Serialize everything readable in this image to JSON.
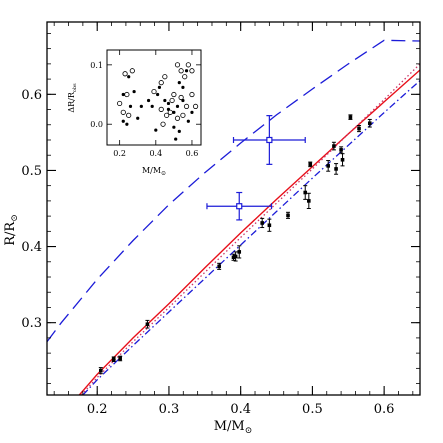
{
  "chart_data": [
    {
      "type": "line",
      "xlim": [
        0.13,
        0.65
      ],
      "ylim": [
        0.205,
        0.695
      ],
      "xlabel": "M/M",
      "ylabel": "R/R",
      "sun_symbol": "⊙",
      "xticks": [
        0.2,
        0.3,
        0.4,
        0.5,
        0.6
      ],
      "xtick_labels": [
        "0.2",
        "0.3",
        "0.4",
        "0.5",
        "0.6"
      ],
      "yticks": [
        0.3,
        0.4,
        0.5,
        0.6
      ],
      "ytick_labels": [
        "0.3",
        "0.4",
        "0.5",
        "0.6"
      ],
      "grid": false,
      "colors": {
        "red": "#e8101a",
        "blue": "#1c1cd8",
        "black": "#000000",
        "magenta": "#cc3366"
      },
      "series": [
        {
          "style": "solid",
          "color": "#e8101a",
          "x": [
            0.175,
            0.2,
            0.25,
            0.3,
            0.35,
            0.4,
            0.45,
            0.5,
            0.55,
            0.6,
            0.65
          ],
          "y": [
            0.205,
            0.232,
            0.28,
            0.325,
            0.372,
            0.418,
            0.462,
            0.505,
            0.548,
            0.59,
            0.632
          ]
        },
        {
          "style": "dotted",
          "color": "#cc3366",
          "x": [
            0.178,
            0.2,
            0.25,
            0.3,
            0.35,
            0.4,
            0.45,
            0.5,
            0.55,
            0.6,
            0.65
          ],
          "y": [
            0.205,
            0.228,
            0.275,
            0.32,
            0.366,
            0.412,
            0.457,
            0.502,
            0.548,
            0.593,
            0.64
          ]
        },
        {
          "style": "dashdot",
          "color": "#1c1cd8",
          "x": [
            0.18,
            0.2,
            0.25,
            0.3,
            0.35,
            0.4,
            0.45,
            0.5,
            0.55,
            0.6,
            0.65
          ],
          "y": [
            0.205,
            0.225,
            0.27,
            0.314,
            0.358,
            0.402,
            0.446,
            0.49,
            0.533,
            0.576,
            0.618
          ]
        },
        {
          "style": "dashed",
          "color": "#1c1cd8",
          "x": [
            0.13,
            0.15,
            0.2,
            0.25,
            0.3,
            0.35,
            0.4,
            0.45,
            0.5,
            0.55,
            0.6,
            0.65
          ],
          "y": [
            0.275,
            0.3,
            0.357,
            0.408,
            0.455,
            0.497,
            0.536,
            0.573,
            0.607,
            0.64,
            0.671,
            0.67
          ]
        }
      ],
      "points": [
        {
          "x": 0.205,
          "y": 0.237,
          "ey": 0.004
        },
        {
          "x": 0.223,
          "y": 0.252,
          "ey": 0.003
        },
        {
          "x": 0.232,
          "y": 0.253,
          "ey": 0.003
        },
        {
          "x": 0.27,
          "y": 0.298,
          "ey": 0.005
        },
        {
          "x": 0.37,
          "y": 0.374,
          "ey": 0.004
        },
        {
          "x": 0.39,
          "y": 0.386,
          "ey": 0.004
        },
        {
          "x": 0.393,
          "y": 0.387,
          "ey": 0.006
        },
        {
          "x": 0.398,
          "y": 0.393,
          "ey": 0.008
        },
        {
          "x": 0.43,
          "y": 0.431,
          "ey": 0.006
        },
        {
          "x": 0.44,
          "y": 0.428,
          "ey": 0.008
        },
        {
          "x": 0.466,
          "y": 0.441,
          "ey": 0.004
        },
        {
          "x": 0.49,
          "y": 0.471,
          "ey": 0.009
        },
        {
          "x": 0.495,
          "y": 0.46,
          "ey": 0.01
        },
        {
          "x": 0.497,
          "y": 0.508,
          "ey": 0.003
        },
        {
          "x": 0.522,
          "y": 0.506,
          "ey": 0.007
        },
        {
          "x": 0.53,
          "y": 0.532,
          "ey": 0.005
        },
        {
          "x": 0.533,
          "y": 0.502,
          "ey": 0.007
        },
        {
          "x": 0.54,
          "y": 0.527,
          "ey": 0.004
        },
        {
          "x": 0.542,
          "y": 0.514,
          "ey": 0.008
        },
        {
          "x": 0.553,
          "y": 0.57,
          "ey": 0.003
        },
        {
          "x": 0.565,
          "y": 0.555,
          "ey": 0.004
        },
        {
          "x": 0.58,
          "y": 0.562,
          "ey": 0.005
        }
      ],
      "open_points": [
        {
          "x": 0.398,
          "y": 0.453,
          "ex": 0.045,
          "ey": 0.018
        },
        {
          "x": 0.44,
          "y": 0.54,
          "ex": 0.05,
          "ey": 0.032
        }
      ]
    },
    {
      "type": "scatter",
      "inset": true,
      "xlim": [
        0.13,
        0.65
      ],
      "ylim": [
        -0.035,
        0.125
      ],
      "xlabel": "M/M",
      "ylabel": "ΔR/R",
      "ylabel_sub": "obs",
      "sun_symbol": "⊙",
      "xticks": [
        0.2,
        0.4,
        0.6
      ],
      "xtick_labels": [
        "0.2",
        "0.4",
        "0.6"
      ],
      "yticks": [
        0.0,
        0.1
      ],
      "ytick_labels": [
        "0.0",
        "0.1"
      ],
      "filled": [
        [
          0.22,
          0.05
        ],
        [
          0.25,
          0.08
        ],
        [
          0.28,
          0.055
        ],
        [
          0.36,
          0.04
        ],
        [
          0.38,
          0.03
        ],
        [
          0.41,
          0.05
        ],
        [
          0.42,
          0.062
        ],
        [
          0.47,
          0.025
        ],
        [
          0.5,
          0.02
        ],
        [
          0.52,
          0.03
        ],
        [
          0.22,
          0.005
        ],
        [
          0.24,
          0.0
        ],
        [
          0.3,
          0.01
        ],
        [
          0.45,
          0.04
        ],
        [
          0.5,
          -0.005
        ],
        [
          0.53,
          0.07
        ],
        [
          0.55,
          0.062
        ],
        [
          0.57,
          0.09
        ],
        [
          0.47,
          0.035
        ],
        [
          0.53,
          -0.012
        ],
        [
          0.51,
          -0.025
        ],
        [
          0.26,
          0.03
        ],
        [
          0.55,
          0.04
        ],
        [
          0.6,
          0.02
        ],
        [
          0.58,
          0.005
        ],
        [
          0.4,
          -0.01
        ],
        [
          0.32,
          0.03
        ]
      ],
      "open": [
        [
          0.2,
          0.035
        ],
        [
          0.22,
          0.02
        ],
        [
          0.25,
          0.015
        ],
        [
          0.27,
          0.09
        ],
        [
          0.23,
          0.085
        ],
        [
          0.24,
          0.05
        ],
        [
          0.39,
          0.055
        ],
        [
          0.43,
          0.07
        ],
        [
          0.45,
          0.08
        ],
        [
          0.48,
          0.02
        ],
        [
          0.5,
          0.05
        ],
        [
          0.52,
          0.1
        ],
        [
          0.54,
          0.09
        ],
        [
          0.56,
          0.08
        ],
        [
          0.58,
          0.1
        ],
        [
          0.6,
          0.05
        ],
        [
          0.55,
          0.015
        ],
        [
          0.57,
          0.03
        ],
        [
          0.52,
          0.01
        ],
        [
          0.49,
          0.04
        ],
        [
          0.46,
          0.015
        ],
        [
          0.43,
          0.025
        ],
        [
          0.6,
          0.09
        ],
        [
          0.44,
          0.0
        ],
        [
          0.54,
          0.045
        ],
        [
          0.62,
          0.03
        ]
      ]
    }
  ]
}
